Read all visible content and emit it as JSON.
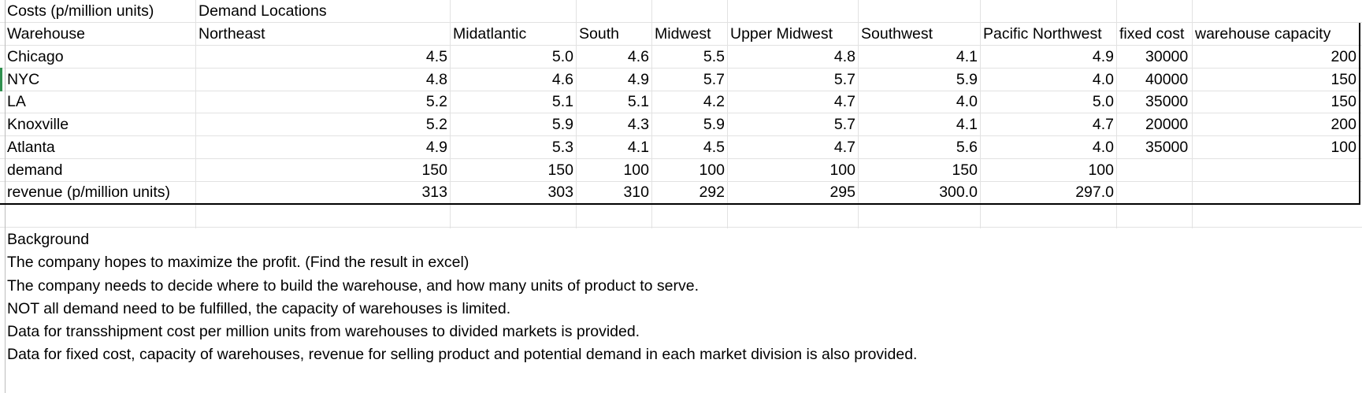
{
  "header": {
    "costs_label": "Costs (p/million units)",
    "demand_locations": "Demand Locations"
  },
  "columns": {
    "warehouse": "Warehouse",
    "northeast": "Northeast",
    "midatlantic": "Midatlantic",
    "south": "South",
    "midwest": "Midwest",
    "upper_midwest": "Upper Midwest",
    "southwest": "Southwest",
    "pacific_northwest": "Pacific Northwest",
    "fixed_cost": "fixed cost",
    "warehouse_capacity": "warehouse capacity"
  },
  "rows": [
    {
      "name": "Chicago",
      "costs": [
        "4.5",
        "5.0",
        "4.6",
        "5.5",
        "4.8",
        "4.1",
        "4.9"
      ],
      "fixed_cost": "30000",
      "capacity": "200"
    },
    {
      "name": "NYC",
      "costs": [
        "4.8",
        "4.6",
        "4.9",
        "5.7",
        "5.7",
        "5.9",
        "4.0"
      ],
      "fixed_cost": "40000",
      "capacity": "150"
    },
    {
      "name": "LA",
      "costs": [
        "5.2",
        "5.1",
        "5.1",
        "4.2",
        "4.7",
        "4.0",
        "5.0"
      ],
      "fixed_cost": "35000",
      "capacity": "150"
    },
    {
      "name": "Knoxville",
      "costs": [
        "5.2",
        "5.9",
        "4.3",
        "5.9",
        "5.7",
        "4.1",
        "4.7"
      ],
      "fixed_cost": "20000",
      "capacity": "200"
    },
    {
      "name": "Atlanta",
      "costs": [
        "4.9",
        "5.3",
        "4.1",
        "4.5",
        "4.7",
        "5.6",
        "4.0"
      ],
      "fixed_cost": "35000",
      "capacity": "100"
    }
  ],
  "demand": {
    "label": "demand",
    "values": [
      "150",
      "150",
      "100",
      "100",
      "100",
      "150",
      "100"
    ]
  },
  "revenue": {
    "label": "revenue (p/million units)",
    "values": [
      "313",
      "303",
      "310",
      "292",
      "295",
      "300.0",
      "297.0"
    ]
  },
  "background": {
    "title": "Background",
    "lines": [
      "The company hopes to maximize the profit. (Find the result in excel)",
      "The company needs to decide where to build the warehouse, and how many units of product to serve.",
      "NOT all demand need to be fulfilled, the capacity of warehouses is limited.",
      "Data for transshipment cost per million units from warehouses to divided markets is provided.",
      "Data for fixed cost, capacity of warehouses, revenue for selling product and potential demand in each market division is also provided."
    ]
  }
}
